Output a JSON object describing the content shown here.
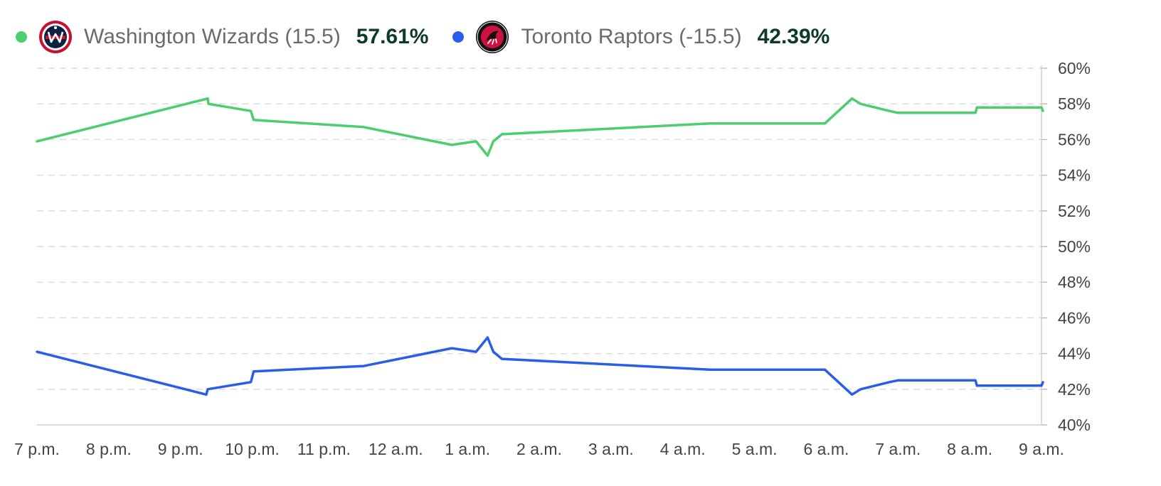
{
  "legend": [
    {
      "team": "Washington Wizards (15.5)",
      "value": "57.61%",
      "color": "#4ccd6e",
      "logo_icon": "washington-wizards-logo"
    },
    {
      "team": "Toronto Raptors (-15.5)",
      "value": "42.39%",
      "color": "#2a5ee8",
      "logo_icon": "toronto-raptors-logo"
    }
  ],
  "chart_data": {
    "type": "line",
    "x_unit": "hours",
    "x_start_label": "7 p.m.",
    "x_tick_labels": [
      "7 p.m.",
      "8 p.m.",
      "9 p.m.",
      "10 p.m.",
      "11 p.m.",
      "12 a.m.",
      "1 a.m.",
      "2 a.m.",
      "3 a.m.",
      "4 a.m.",
      "5 a.m.",
      "6 a.m.",
      "7 a.m.",
      "8 a.m.",
      "9 a.m."
    ],
    "y_tick_labels": [
      "40%",
      "42%",
      "44%",
      "46%",
      "48%",
      "50%",
      "52%",
      "54%",
      "56%",
      "58%",
      "60%"
    ],
    "xlim": [
      0,
      14
    ],
    "ylim": [
      40,
      60
    ],
    "y_axis_side": "right",
    "grid": "horizontal-dashed",
    "series": [
      {
        "name": "Washington Wizards (15.5)",
        "color": "#4ccd6e",
        "points": [
          [
            0.0,
            55.9
          ],
          [
            2.38,
            58.3
          ],
          [
            2.39,
            58.0
          ],
          [
            2.98,
            57.6
          ],
          [
            3.02,
            57.1
          ],
          [
            4.55,
            56.7
          ],
          [
            5.78,
            55.7
          ],
          [
            6.12,
            55.9
          ],
          [
            6.28,
            55.1
          ],
          [
            6.36,
            55.9
          ],
          [
            6.48,
            56.3
          ],
          [
            9.38,
            56.9
          ],
          [
            10.98,
            56.9
          ],
          [
            11.36,
            58.3
          ],
          [
            11.48,
            58.0
          ],
          [
            11.88,
            57.6
          ],
          [
            12.0,
            57.5
          ],
          [
            13.08,
            57.5
          ],
          [
            13.1,
            57.8
          ],
          [
            14.0,
            57.8
          ],
          [
            14.02,
            57.61
          ]
        ]
      },
      {
        "name": "Toronto Raptors (-15.5)",
        "color": "#2a5ee8",
        "points": [
          [
            0.0,
            44.1
          ],
          [
            2.36,
            41.7
          ],
          [
            2.38,
            42.0
          ],
          [
            2.98,
            42.4
          ],
          [
            3.02,
            43.0
          ],
          [
            4.55,
            43.3
          ],
          [
            5.78,
            44.3
          ],
          [
            6.12,
            44.1
          ],
          [
            6.28,
            44.9
          ],
          [
            6.36,
            44.1
          ],
          [
            6.48,
            43.7
          ],
          [
            9.38,
            43.1
          ],
          [
            10.98,
            43.1
          ],
          [
            11.36,
            41.7
          ],
          [
            11.48,
            42.0
          ],
          [
            11.88,
            42.4
          ],
          [
            12.0,
            42.5
          ],
          [
            13.08,
            42.5
          ],
          [
            13.1,
            42.2
          ],
          [
            14.0,
            42.2
          ],
          [
            14.02,
            42.39
          ]
        ]
      }
    ]
  }
}
